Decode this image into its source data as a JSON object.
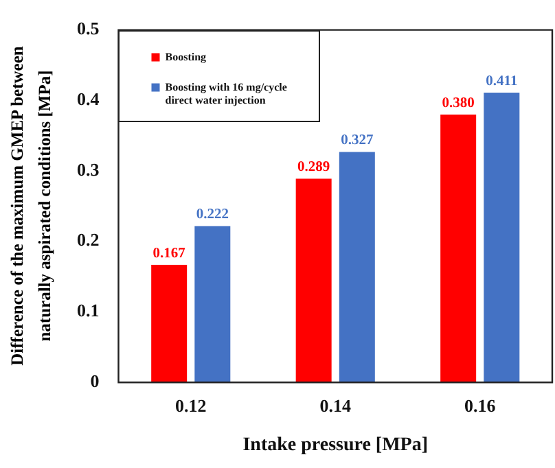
{
  "chart_data": {
    "type": "bar",
    "xlabel": "Intake pressure [MPa]",
    "ylabel": "Difference of the maximum GMEP between naturally aspirated conditions [MPa]",
    "categories": [
      "0.12",
      "0.14",
      "0.16"
    ],
    "series": [
      {
        "name": "Boosting",
        "color": "#ff0000",
        "values": [
          0.167,
          0.289,
          0.38
        ],
        "value_labels": [
          "0.167",
          "0.289",
          "0.380"
        ]
      },
      {
        "name": "Boosting with 16 mg/cycle direct water injection",
        "color": "#4472c4",
        "values": [
          0.222,
          0.327,
          0.411
        ],
        "value_labels": [
          "0.222",
          "0.327",
          "0.411"
        ]
      }
    ],
    "ylim": [
      0,
      0.5
    ],
    "yticks": [
      0,
      0.1,
      0.2,
      0.3,
      0.4,
      0.5
    ],
    "grid": false,
    "legend": "top left"
  }
}
